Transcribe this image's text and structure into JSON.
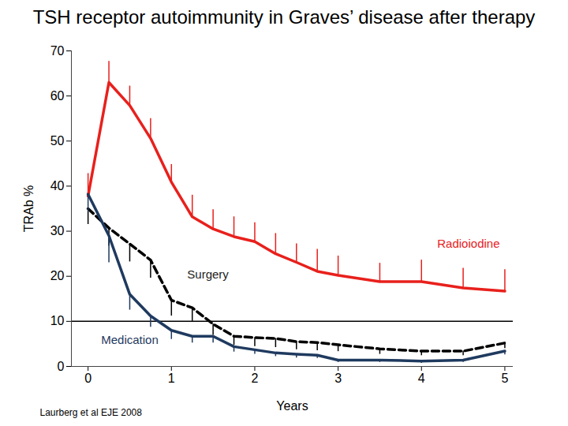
{
  "chart_data": {
    "type": "line",
    "title": "TSH receptor autoimmunity in Graves’ disease after therapy",
    "x_label": "Years",
    "y_label": "TRAb %",
    "source": "Laurberg et al EJE 2008",
    "x": [
      0,
      0.25,
      0.5,
      0.75,
      1,
      1.25,
      1.5,
      1.75,
      2,
      2.25,
      2.5,
      2.75,
      3,
      3.5,
      4,
      4.5,
      5
    ],
    "xlim": [
      -0.2,
      5.1
    ],
    "xticks": [
      0,
      1,
      2,
      3,
      4,
      5
    ],
    "ylim": [
      0,
      70
    ],
    "yticks": [
      0,
      10,
      20,
      30,
      40,
      50,
      60,
      70
    ],
    "reference_line": 10,
    "grid": false,
    "series": [
      {
        "name": "Radioiodine",
        "color": "#e8201c",
        "line_style": "solid",
        "values": [
          37.8,
          63,
          57.9,
          50.6,
          40.9,
          33.2,
          30.5,
          28.8,
          27.7,
          25,
          23.1,
          21.1,
          20.2,
          18.8,
          18.8,
          17.4,
          16.7
        ],
        "error_upper": [
          5.0,
          4.7,
          4.3,
          4.4,
          3.9,
          4.8,
          4.3,
          4.4,
          4.2,
          4.5,
          4.1,
          4.9,
          4.3,
          4.1,
          4.8,
          4.4,
          4.8
        ]
      },
      {
        "name": "Surgery",
        "color": "#000000",
        "line_style": "dashed",
        "values": [
          35,
          30.7,
          27.2,
          23.6,
          14.7,
          13,
          9.4,
          6.7,
          6.4,
          6.2,
          5.5,
          5.3,
          4.8,
          3.9,
          3.4,
          3.4,
          5.2
        ],
        "error_lower": [
          3.5,
          4,
          4,
          4,
          3.5,
          3,
          2.5,
          2,
          2,
          2,
          1.8,
          1.8,
          1.5,
          1.2,
          1,
          1,
          1.2
        ]
      },
      {
        "name": "Medication",
        "color": "#1f3a5f",
        "line_style": "solid",
        "values": [
          38.2,
          29,
          16,
          11.2,
          8,
          6.7,
          6.7,
          4.4,
          3.7,
          3,
          2.7,
          2.5,
          1.4,
          1.4,
          1.2,
          1.4,
          3.4
        ],
        "error_lower": [
          4,
          6,
          3.5,
          2.5,
          2,
          1.5,
          1.5,
          1.2,
          1,
          0.8,
          0.8,
          0.7,
          0.5,
          0.5,
          0.5,
          0.5,
          0.8
        ]
      }
    ]
  }
}
